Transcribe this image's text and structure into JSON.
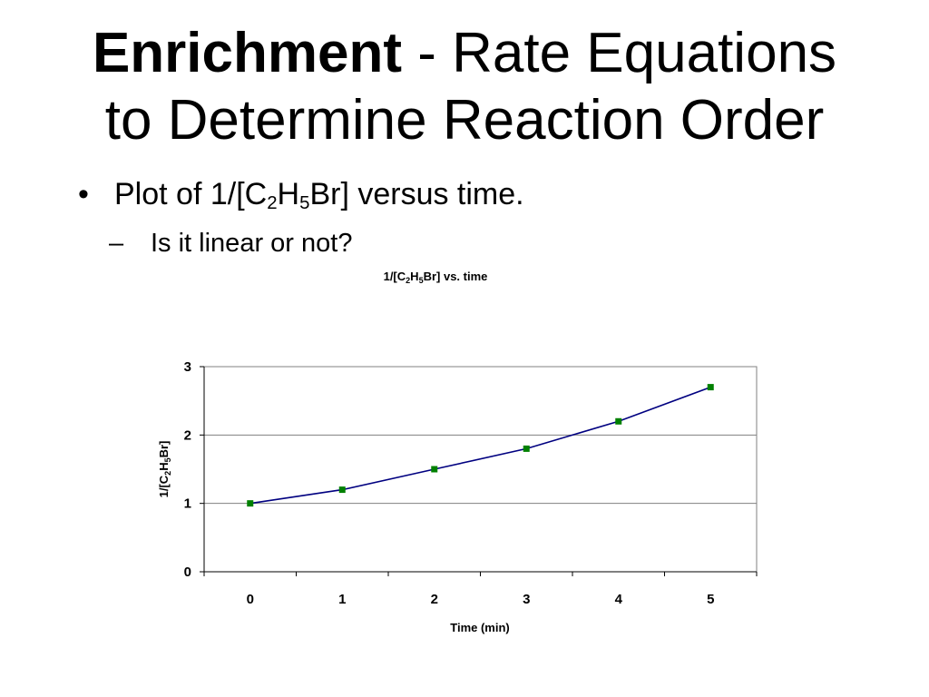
{
  "slide": {
    "title_bold": "Enrichment",
    "title_rest": " - Rate Equations",
    "title_line2": "to Determine Reaction Order",
    "bullet1": {
      "marker": "•",
      "prefix": "Plot of  1/[C",
      "sub1": "2",
      "mid": "H",
      "sub2": "5",
      "suffix": "Br] versus time."
    },
    "bullet2": {
      "marker": "–",
      "text": "Is it linear or not?"
    }
  },
  "chart_data": {
    "type": "line",
    "title": {
      "prefix": "1/[C",
      "sub1": "2",
      "mid": "H",
      "sub2": "5",
      "suffix": "Br] vs. time"
    },
    "xlabel": "Time (min)",
    "ylabel": {
      "prefix": "1/[C",
      "sub1": "2",
      "mid": "H",
      "sub2": "5",
      "suffix": "Br]"
    },
    "categories": [
      "0",
      "1",
      "2",
      "3",
      "4",
      "5"
    ],
    "x": [
      0,
      1,
      2,
      3,
      4,
      5
    ],
    "series": [
      {
        "values": [
          1.0,
          1.2,
          1.5,
          1.8,
          2.2,
          2.7
        ]
      }
    ],
    "ylim": [
      0,
      3
    ],
    "yticks": [
      "0",
      "1",
      "2",
      "3"
    ],
    "grid": true,
    "line_color": "#000080",
    "marker_color": "#008000"
  }
}
